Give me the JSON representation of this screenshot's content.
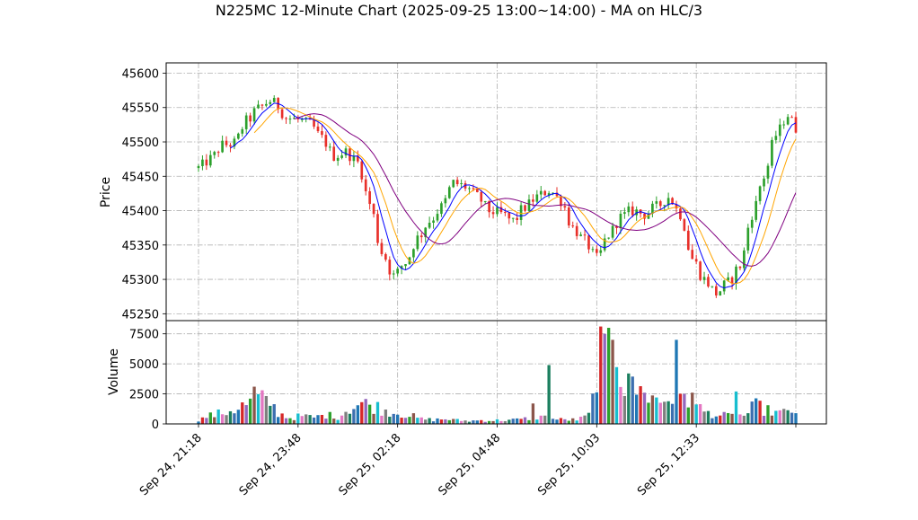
{
  "chart_data": {
    "type": "candlestick",
    "title": "N225MC 12-Minute Chart (2025-09-25 13:00~14:00) - MA on HLC/3",
    "price_panel": {
      "ylabel": "Price",
      "ylim": [
        45240,
        45615
      ],
      "yticks": [
        45250,
        45300,
        45350,
        45400,
        45450,
        45500,
        45550,
        45600
      ],
      "ytick_labels": [
        "45250",
        "45300",
        "45350",
        "45400",
        "45450",
        "45500",
        "45550",
        "45600"
      ],
      "grid": true
    },
    "volume_panel": {
      "ylabel": "Volume",
      "ylim": [
        0,
        8600
      ],
      "yticks": [
        0,
        2500,
        5000,
        7500
      ],
      "ytick_labels": [
        "0",
        "2500",
        "5000",
        "7500"
      ],
      "grid": true
    },
    "xaxis": {
      "tick_labels": [
        "Sep 24, 21:18",
        "Sep 24, 23:48",
        "Sep 25, 02:18",
        "Sep 25, 04:48",
        "Sep 25, 10:03",
        "Sep 25, 12:33"
      ],
      "tick_bars": [
        0,
        25,
        50,
        75,
        100,
        125
      ],
      "n_bars": 151,
      "grid": true
    },
    "colors": {
      "up": "#2ca02c",
      "down": "#e8302a",
      "ma_fast": "#0000ff",
      "ma_mid": "#ffa500",
      "ma_slow": "#800080",
      "volume_palette": [
        "#1f77b4",
        "#d62728",
        "#9467bd",
        "#2ca02c",
        "#8c564b",
        "#17becf",
        "#e377c2",
        "#7f7f7f",
        "#1b7f5f",
        "#3c6fb0"
      ]
    },
    "price_anchors": [
      [
        0,
        45462
      ],
      [
        3,
        45475
      ],
      [
        6,
        45495
      ],
      [
        9,
        45498
      ],
      [
        12,
        45530
      ],
      [
        15,
        45548
      ],
      [
        18,
        45560
      ],
      [
        20,
        45552
      ],
      [
        22,
        45535
      ],
      [
        25,
        45532
      ],
      [
        28,
        45525
      ],
      [
        31,
        45505
      ],
      [
        34,
        45480
      ],
      [
        37,
        45485
      ],
      [
        40,
        45470
      ],
      [
        43,
        45410
      ],
      [
        46,
        45340
      ],
      [
        49,
        45305
      ],
      [
        52,
        45325
      ],
      [
        55,
        45360
      ],
      [
        58,
        45385
      ],
      [
        61,
        45405
      ],
      [
        64,
        45440
      ],
      [
        67,
        45435
      ],
      [
        70,
        45420
      ],
      [
        73,
        45400
      ],
      [
        76,
        45395
      ],
      [
        79,
        45385
      ],
      [
        82,
        45405
      ],
      [
        85,
        45420
      ],
      [
        88,
        45430
      ],
      [
        91,
        45415
      ],
      [
        94,
        45375
      ],
      [
        97,
        45355
      ],
      [
        100,
        45330
      ],
      [
        103,
        45365
      ],
      [
        106,
        45390
      ],
      [
        109,
        45400
      ],
      [
        112,
        45395
      ],
      [
        115,
        45405
      ],
      [
        118,
        45420
      ],
      [
        121,
        45395
      ],
      [
        124,
        45330
      ],
      [
        127,
        45300
      ],
      [
        130,
        45280
      ],
      [
        133,
        45295
      ],
      [
        136,
        45320
      ],
      [
        139,
        45395
      ],
      [
        142,
        45450
      ],
      [
        145,
        45510
      ],
      [
        148,
        45540
      ],
      [
        150,
        45520
      ]
    ],
    "volume_anchors": [
      [
        0,
        350
      ],
      [
        3,
        700
      ],
      [
        6,
        900
      ],
      [
        9,
        1200
      ],
      [
        12,
        1600
      ],
      [
        15,
        2100
      ],
      [
        18,
        1800
      ],
      [
        20,
        900
      ],
      [
        23,
        500
      ],
      [
        26,
        650
      ],
      [
        29,
        550
      ],
      [
        32,
        750
      ],
      [
        35,
        600
      ],
      [
        38,
        1300
      ],
      [
        41,
        1700
      ],
      [
        44,
        1500
      ],
      [
        47,
        1100
      ],
      [
        50,
        900
      ],
      [
        53,
        700
      ],
      [
        56,
        400
      ],
      [
        59,
        350
      ],
      [
        62,
        400
      ],
      [
        65,
        300
      ],
      [
        68,
        250
      ],
      [
        71,
        300
      ],
      [
        74,
        280
      ],
      [
        77,
        320
      ],
      [
        80,
        350
      ],
      [
        83,
        450
      ],
      [
        86,
        600
      ],
      [
        89,
        400
      ],
      [
        92,
        350
      ],
      [
        95,
        350
      ],
      [
        98,
        700
      ],
      [
        101,
        6000
      ],
      [
        104,
        8000
      ],
      [
        107,
        3200
      ],
      [
        110,
        2800
      ],
      [
        113,
        2200
      ],
      [
        116,
        1900
      ],
      [
        119,
        2100
      ],
      [
        122,
        1700
      ],
      [
        125,
        1400
      ],
      [
        128,
        900
      ],
      [
        131,
        700
      ],
      [
        134,
        650
      ],
      [
        137,
        700
      ],
      [
        140,
        1500
      ],
      [
        143,
        1100
      ],
      [
        146,
        900
      ],
      [
        150,
        1100
      ]
    ],
    "volume_spikes": [
      [
        88,
        4900
      ],
      [
        102,
        7500
      ],
      [
        103,
        8000
      ],
      [
        104,
        7000
      ],
      [
        108,
        4200
      ],
      [
        112,
        2600
      ],
      [
        115,
        2200
      ],
      [
        120,
        7000
      ],
      [
        122,
        2500
      ],
      [
        14,
        3100
      ],
      [
        84,
        1700
      ],
      [
        124,
        2600
      ],
      [
        135,
        2700
      ]
    ]
  }
}
